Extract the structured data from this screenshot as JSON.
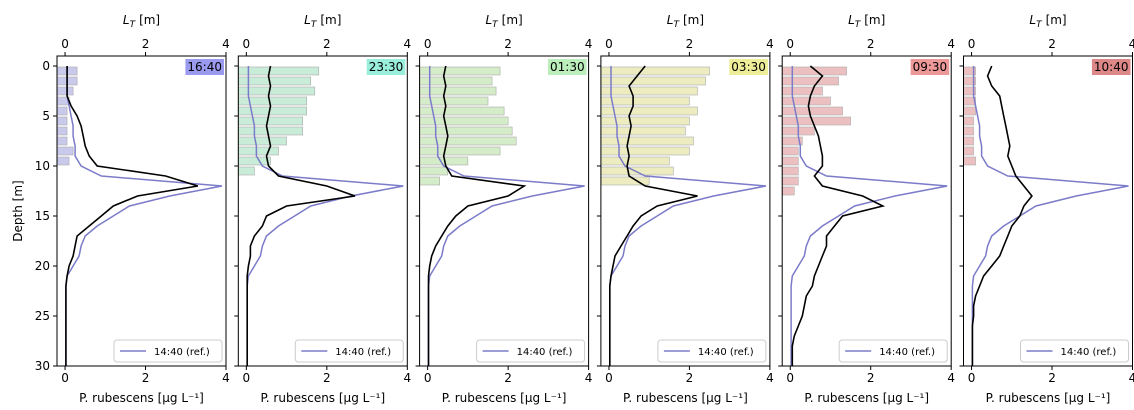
{
  "chart_data": [
    {
      "type": "line",
      "title": "16:40",
      "title_color": "#9a9aee",
      "xlabel": "P. rubescens [μg L⁻¹]",
      "x2label_main": "L",
      "x2label_sub": "T",
      "x2label_unit": "[m]",
      "ylabel": "Depth [m]",
      "show_ytick_labels": true,
      "xlim": [
        -0.2,
        4
      ],
      "xticks": [
        0,
        2,
        4
      ],
      "x2lim": [
        -0.2,
        4
      ],
      "x2ticks": [
        0,
        2,
        4
      ],
      "ylim": [
        30,
        -1
      ],
      "yticks": [
        0,
        5,
        10,
        15,
        20,
        25,
        30
      ],
      "legend": "lower right",
      "y": [
        0,
        1,
        2,
        3,
        4,
        5,
        6,
        7,
        8,
        9,
        10,
        11,
        12,
        13,
        14,
        15,
        16,
        17,
        18,
        19,
        20,
        21,
        22,
        23,
        24,
        25,
        26,
        27,
        28,
        29,
        30
      ],
      "series": [
        {
          "name": "14:40 (ref.)",
          "color": "#7b7bc9",
          "values": [
            0.05,
            0.05,
            0.05,
            0.05,
            0.1,
            0.15,
            0.2,
            0.2,
            0.25,
            0.25,
            0.4,
            0.9,
            3.9,
            2.6,
            1.6,
            1.2,
            0.8,
            0.5,
            0.4,
            0.35,
            0.2,
            0.05,
            0.02,
            0.02,
            0.02,
            0.02,
            0.02,
            0.02,
            0.02,
            0.02,
            0.02
          ]
        },
        {
          "color": "#000000",
          "values": [
            0.05,
            0.05,
            0.05,
            0.05,
            0.15,
            0.3,
            0.4,
            0.45,
            0.5,
            0.6,
            0.8,
            2.5,
            3.3,
            1.8,
            1.2,
            0.9,
            0.6,
            0.3,
            0.25,
            0.2,
            0.1,
            0.05,
            0.02,
            0.02,
            0.02,
            0.02,
            0.02,
            0.02,
            0.02,
            0.02,
            0.02
          ]
        }
      ],
      "bars": {
        "color": "#c9c9ec",
        "y": [
          0.5,
          1.5,
          2.5,
          3.5,
          4.5,
          5.5,
          6.5,
          7.5,
          8.5,
          9.5
        ],
        "values": [
          0.3,
          0.3,
          0.2,
          0.1,
          0.05,
          0.05,
          0.05,
          0.05,
          0.2,
          0.1
        ]
      }
    },
    {
      "type": "line",
      "title": "23:30",
      "title_color": "#99eedc",
      "xlabel": "P. rubescens [μg L⁻¹]",
      "x2label_main": "L",
      "x2label_sub": "T",
      "x2label_unit": "[m]",
      "show_ytick_labels": false,
      "xlim": [
        -0.2,
        4
      ],
      "xticks": [
        0,
        2,
        4
      ],
      "x2lim": [
        -0.2,
        4
      ],
      "x2ticks": [
        0,
        2,
        4
      ],
      "ylim": [
        30,
        -1
      ],
      "yticks": [
        0,
        5,
        10,
        15,
        20,
        25,
        30
      ],
      "legend": "lower right",
      "y": [
        0,
        1,
        2,
        3,
        4,
        5,
        6,
        7,
        8,
        9,
        10,
        11,
        12,
        13,
        14,
        15,
        16,
        17,
        18,
        19,
        20,
        21,
        22,
        23,
        24,
        25,
        26,
        27,
        28,
        29,
        30
      ],
      "series": [
        {
          "name": "14:40 (ref.)",
          "color": "#7b7bc9",
          "values": [
            0.05,
            0.05,
            0.05,
            0.05,
            0.1,
            0.15,
            0.2,
            0.2,
            0.25,
            0.25,
            0.4,
            0.9,
            3.9,
            2.6,
            1.6,
            1.2,
            0.8,
            0.5,
            0.4,
            0.35,
            0.2,
            0.05,
            0.02,
            0.02,
            0.02,
            0.02,
            0.02,
            0.02,
            0.02,
            0.02,
            0.02
          ]
        },
        {
          "color": "#000000",
          "values": [
            0.6,
            0.55,
            0.6,
            0.55,
            0.6,
            0.55,
            0.5,
            0.55,
            0.6,
            0.5,
            0.55,
            0.8,
            2.0,
            2.7,
            1.0,
            0.5,
            0.4,
            0.2,
            0.1,
            0.1,
            0.05,
            0.02,
            0.02,
            0.02,
            0.02,
            0.02,
            0.02,
            0.02,
            0.02,
            0.02,
            0.02
          ]
        }
      ],
      "bars": {
        "color": "#c8ecd8",
        "y": [
          0.5,
          1.5,
          2.5,
          3.5,
          4.5,
          5.5,
          6.5,
          7.5,
          8.5,
          9.5,
          10.5
        ],
        "values": [
          1.8,
          1.6,
          1.7,
          1.5,
          1.5,
          1.4,
          1.4,
          1.0,
          0.8,
          0.6,
          0.2
        ]
      }
    },
    {
      "type": "line",
      "title": "01:30",
      "title_color": "#bbeebb",
      "xlabel": "P. rubescens [μg L⁻¹]",
      "x2label_main": "L",
      "x2label_sub": "T",
      "x2label_unit": "[m]",
      "show_ytick_labels": false,
      "xlim": [
        -0.2,
        4
      ],
      "xticks": [
        0,
        2,
        4
      ],
      "x2lim": [
        -0.2,
        4
      ],
      "x2ticks": [
        0,
        2,
        4
      ],
      "ylim": [
        30,
        -1
      ],
      "yticks": [
        0,
        5,
        10,
        15,
        20,
        25,
        30
      ],
      "legend": "lower right",
      "y": [
        0,
        1,
        2,
        3,
        4,
        5,
        6,
        7,
        8,
        9,
        10,
        11,
        12,
        13,
        14,
        15,
        16,
        17,
        18,
        19,
        20,
        21,
        22,
        23,
        24,
        25,
        26,
        27,
        28,
        29,
        30
      ],
      "series": [
        {
          "name": "14:40 (ref.)",
          "color": "#7b7bc9",
          "values": [
            0.05,
            0.05,
            0.05,
            0.05,
            0.1,
            0.15,
            0.2,
            0.2,
            0.25,
            0.25,
            0.4,
            0.9,
            3.9,
            2.6,
            1.6,
            1.2,
            0.8,
            0.5,
            0.4,
            0.35,
            0.2,
            0.05,
            0.02,
            0.02,
            0.02,
            0.02,
            0.02,
            0.02,
            0.02,
            0.02,
            0.02
          ]
        },
        {
          "color": "#000000",
          "values": [
            0.45,
            0.4,
            0.45,
            0.4,
            0.45,
            0.4,
            0.45,
            0.5,
            0.45,
            0.4,
            0.45,
            0.6,
            2.4,
            2.0,
            1.0,
            0.7,
            0.5,
            0.35,
            0.2,
            0.1,
            0.05,
            0.02,
            0.02,
            0.02,
            0.02,
            0.02,
            0.02,
            0.02,
            0.02,
            0.02,
            0.02
          ]
        }
      ],
      "bars": {
        "color": "#d4ecc8",
        "y": [
          0.5,
          1.5,
          2.5,
          3.5,
          4.5,
          5.5,
          6.5,
          7.5,
          8.5,
          9.5,
          10.5,
          11.5
        ],
        "values": [
          1.8,
          1.6,
          1.7,
          1.5,
          1.9,
          2.0,
          2.1,
          2.2,
          1.8,
          1.0,
          0.5,
          0.3
        ]
      }
    },
    {
      "type": "line",
      "title": "03:30",
      "title_color": "#eeee99",
      "xlabel": "P. rubescens [μg L⁻¹]",
      "x2label_main": "L",
      "x2label_sub": "T",
      "x2label_unit": "[m]",
      "show_ytick_labels": false,
      "xlim": [
        -0.2,
        4
      ],
      "xticks": [
        0,
        2,
        4
      ],
      "x2lim": [
        -0.2,
        4
      ],
      "x2ticks": [
        0,
        2,
        4
      ],
      "ylim": [
        30,
        -1
      ],
      "yticks": [
        0,
        5,
        10,
        15,
        20,
        25,
        30
      ],
      "legend": "lower right",
      "y": [
        0,
        1,
        2,
        3,
        4,
        5,
        6,
        7,
        8,
        9,
        10,
        11,
        12,
        13,
        14,
        15,
        16,
        17,
        18,
        19,
        20,
        21,
        22,
        23,
        24,
        25,
        26,
        27,
        28,
        29,
        30
      ],
      "series": [
        {
          "name": "14:40 (ref.)",
          "color": "#7b7bc9",
          "values": [
            0.05,
            0.05,
            0.05,
            0.05,
            0.1,
            0.15,
            0.2,
            0.2,
            0.25,
            0.25,
            0.4,
            0.9,
            3.9,
            2.6,
            1.6,
            1.2,
            0.8,
            0.5,
            0.4,
            0.35,
            0.2,
            0.05,
            0.02,
            0.02,
            0.02,
            0.02,
            0.02,
            0.02,
            0.02,
            0.02,
            0.02
          ]
        },
        {
          "color": "#000000",
          "values": [
            0.9,
            0.7,
            0.5,
            0.6,
            0.6,
            0.5,
            0.55,
            0.5,
            0.45,
            0.5,
            0.45,
            0.5,
            0.9,
            2.2,
            1.2,
            0.8,
            0.6,
            0.45,
            0.3,
            0.15,
            0.1,
            0.05,
            0.02,
            0.02,
            0.02,
            0.02,
            0.02,
            0.02,
            0.02,
            0.02,
            0.02
          ]
        }
      ],
      "bars": {
        "color": "#ececc0",
        "y": [
          0.5,
          1.5,
          2.5,
          3.5,
          4.5,
          5.5,
          6.5,
          7.5,
          8.5,
          9.5,
          10.5,
          11.5
        ],
        "values": [
          2.5,
          2.4,
          2.2,
          2.0,
          2.2,
          2.0,
          1.9,
          2.1,
          2.0,
          1.5,
          1.6,
          1.0
        ]
      }
    },
    {
      "type": "line",
      "title": "09:30",
      "title_color": "#ee9999",
      "xlabel": "P. rubescens [μg L⁻¹]",
      "x2label_main": "L",
      "x2label_sub": "T",
      "x2label_unit": "[m]",
      "show_ytick_labels": false,
      "xlim": [
        -0.2,
        4
      ],
      "xticks": [
        0,
        2,
        4
      ],
      "x2lim": [
        -0.2,
        4
      ],
      "x2ticks": [
        0,
        2,
        4
      ],
      "ylim": [
        30,
        -1
      ],
      "yticks": [
        0,
        5,
        10,
        15,
        20,
        25,
        30
      ],
      "legend": "lower right",
      "y": [
        0,
        1,
        2,
        3,
        4,
        5,
        6,
        7,
        8,
        9,
        10,
        11,
        12,
        13,
        14,
        15,
        16,
        17,
        18,
        19,
        20,
        21,
        22,
        23,
        24,
        25,
        26,
        27,
        28,
        29,
        30
      ],
      "series": [
        {
          "name": "14:40 (ref.)",
          "color": "#7b7bc9",
          "values": [
            0.05,
            0.05,
            0.05,
            0.05,
            0.1,
            0.15,
            0.2,
            0.2,
            0.25,
            0.25,
            0.4,
            0.9,
            3.9,
            2.6,
            1.6,
            1.2,
            0.8,
            0.5,
            0.4,
            0.35,
            0.2,
            0.05,
            0.02,
            0.02,
            0.02,
            0.02,
            0.02,
            0.02,
            0.02,
            0.02,
            0.02
          ]
        },
        {
          "color": "#000000",
          "values": [
            0.5,
            0.8,
            0.6,
            0.5,
            0.45,
            0.5,
            0.6,
            0.7,
            0.75,
            0.8,
            0.8,
            0.6,
            0.8,
            1.8,
            2.3,
            1.3,
            1.1,
            0.9,
            0.9,
            0.8,
            0.7,
            0.6,
            0.55,
            0.4,
            0.35,
            0.3,
            0.2,
            0.1,
            0.05,
            0.05,
            0.05
          ]
        }
      ],
      "bars": {
        "color": "#ecc0c0",
        "y": [
          0.5,
          1.5,
          2.5,
          3.5,
          4.5,
          5.5,
          6.5,
          7.5,
          8.5,
          9.5,
          10.5,
          11.5,
          12.5
        ],
        "values": [
          1.4,
          1.2,
          0.8,
          1.0,
          1.3,
          1.5,
          0.6,
          0.3,
          0.2,
          0.2,
          0.2,
          0.2,
          0.1
        ]
      }
    },
    {
      "type": "line",
      "title": "10:40",
      "title_color": "#dd8888",
      "xlabel": "P. rubescens [μg L⁻¹]",
      "x2label_main": "L",
      "x2label_sub": "T",
      "x2label_unit": "[m]",
      "show_ytick_labels": false,
      "xlim": [
        -0.2,
        4
      ],
      "xticks": [
        0,
        2,
        4
      ],
      "x2lim": [
        -0.2,
        4
      ],
      "x2ticks": [
        0,
        2,
        4
      ],
      "ylim": [
        30,
        -1
      ],
      "yticks": [
        0,
        5,
        10,
        15,
        20,
        25,
        30
      ],
      "legend": "lower right",
      "y": [
        0,
        1,
        2,
        3,
        4,
        5,
        6,
        7,
        8,
        9,
        10,
        11,
        12,
        13,
        14,
        15,
        16,
        17,
        18,
        19,
        20,
        21,
        22,
        23,
        24,
        25,
        26,
        27,
        28,
        29,
        30
      ],
      "series": [
        {
          "name": "14:40 (ref.)",
          "color": "#7b7bc9",
          "values": [
            0.05,
            0.05,
            0.05,
            0.05,
            0.1,
            0.15,
            0.2,
            0.2,
            0.25,
            0.25,
            0.4,
            0.9,
            3.9,
            2.6,
            1.6,
            1.2,
            0.8,
            0.5,
            0.4,
            0.35,
            0.2,
            0.05,
            0.02,
            0.02,
            0.02,
            0.02,
            0.02,
            0.02,
            0.02,
            0.02,
            0.02
          ]
        },
        {
          "color": "#000000",
          "values": [
            0.5,
            0.4,
            0.5,
            0.7,
            0.75,
            0.8,
            0.85,
            0.9,
            0.95,
            0.9,
            1.0,
            1.1,
            1.3,
            1.5,
            1.3,
            1.2,
            1.0,
            0.9,
            0.8,
            0.7,
            0.5,
            0.3,
            0.2,
            0.1,
            0.05,
            0.05,
            0.02,
            0.02,
            0.02,
            0.02,
            0.02
          ]
        }
      ],
      "bars": {
        "color": "#ecc0c0",
        "y": [
          0.5,
          1.5,
          2.5,
          3.5,
          4.5,
          5.5,
          6.5,
          7.5,
          8.5,
          9.5
        ],
        "values": [
          0.1,
          0.1,
          0.1,
          0.1,
          0.1,
          0.05,
          0.05,
          0.05,
          0.05,
          0.1
        ]
      }
    }
  ]
}
